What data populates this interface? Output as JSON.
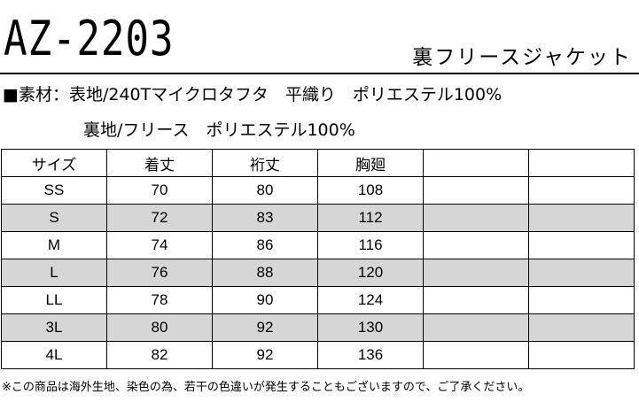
{
  "model_code": "AZ-2203",
  "product_name": "裏フリースジャケット",
  "materials": {
    "line1": "■素材：表地/240Tマイクロタフタ　平織り　ポリエステル100%",
    "line2": "裏地/フリース　ポリエステル100%"
  },
  "size_table": {
    "headers": [
      "サイズ",
      "着丈",
      "裄丈",
      "胸廻",
      "",
      ""
    ],
    "rows": [
      [
        "SS",
        "70",
        "80",
        "108",
        "",
        ""
      ],
      [
        "S",
        "72",
        "83",
        "112",
        "",
        ""
      ],
      [
        "M",
        "74",
        "86",
        "116",
        "",
        ""
      ],
      [
        "L",
        "76",
        "88",
        "120",
        "",
        ""
      ],
      [
        "LL",
        "78",
        "90",
        "124",
        "",
        ""
      ],
      [
        "3L",
        "80",
        "92",
        "130",
        "",
        ""
      ],
      [
        "4L",
        "82",
        "92",
        "136",
        "",
        ""
      ]
    ],
    "shade_color": "#d6d6d6"
  },
  "footnote": "※この商品は海外生地、染色の為、若干の色違いが発生することもございますので、ご了承ください。"
}
